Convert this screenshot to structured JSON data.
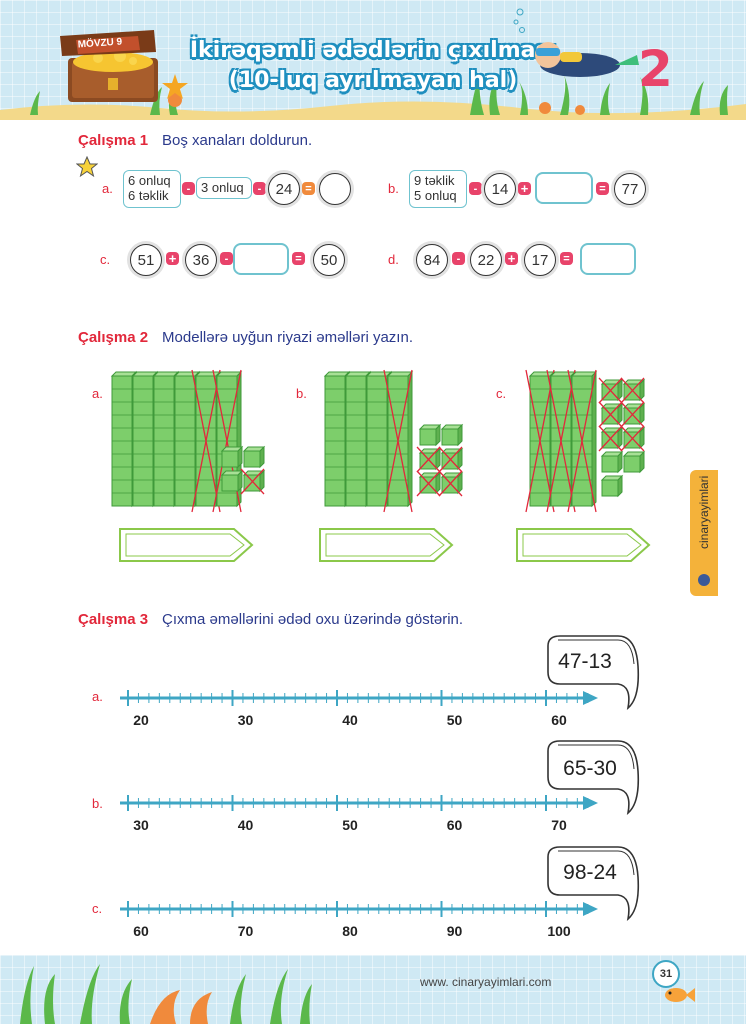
{
  "header": {
    "badge": "MÖVZU 9",
    "title_line1": "İkirəqəmli ədədlərin çıxılması",
    "title_line2": "(10-luq ayrılmayan hal)",
    "corner_number": "2"
  },
  "colors": {
    "accent": "#e2283b",
    "title_blue": "#2b3a8c",
    "box_border": "#6fc3cf",
    "line": "#3ea6c4",
    "cube_green": "#7dce6b",
    "cross_red": "#e2283b"
  },
  "ex1": {
    "label": "Çalışma 1",
    "text": "Boş xanaları doldurun.",
    "a": {
      "label": "a.",
      "box1_line1": "6 onluq",
      "box1_line2": "6 təklik",
      "op1": "-",
      "box2": "3 onluq",
      "op2": "-",
      "c1": "24",
      "op3": "="
    },
    "b": {
      "label": "b.",
      "box1_line1": "9 təklik",
      "box1_line2": "5 onluq",
      "op1": "-",
      "c1": "14",
      "op2": "+",
      "op3": "=",
      "c2": "77"
    },
    "c": {
      "label": "c.",
      "c1": "51",
      "op1": "+",
      "c2": "36",
      "op2": "-",
      "op3": "=",
      "c3": "50"
    },
    "d": {
      "label": "d.",
      "c1": "84",
      "op1": "-",
      "c2": "22",
      "op2": "+",
      "c3": "17",
      "op3": "="
    }
  },
  "ex2": {
    "label": "Çalışma 2",
    "text": "Modellərə uyğun riyazi əməlləri yazın.",
    "models": [
      {
        "label": "a.",
        "rods": 6,
        "crossed_rods": 2,
        "units": 4,
        "crossed_units": 1
      },
      {
        "label": "b.",
        "rods": 4,
        "crossed_rods": 1,
        "units": 6,
        "crossed_units": 4
      },
      {
        "label": "c.",
        "rods": 3,
        "crossed_rods": 3,
        "units": 9,
        "crossed_units": 6
      }
    ]
  },
  "ex3": {
    "label": "Çalışma 3",
    "text": "Çıxma əməllərini ədəd oxu üzərində göstərin.",
    "lines": [
      {
        "label": "a.",
        "expr": "47-13",
        "ticks": [
          "20",
          "30",
          "40",
          "50",
          "60"
        ]
      },
      {
        "label": "b.",
        "expr": "65-30",
        "ticks": [
          "30",
          "40",
          "50",
          "60",
          "70"
        ]
      },
      {
        "label": "c.",
        "expr": "98-24",
        "ticks": [
          "60",
          "70",
          "80",
          "90",
          "100"
        ]
      }
    ]
  },
  "side_tab": "cinaryayimlari",
  "footer": {
    "website": "www. cinaryayimlari.com",
    "page_number": "31"
  }
}
